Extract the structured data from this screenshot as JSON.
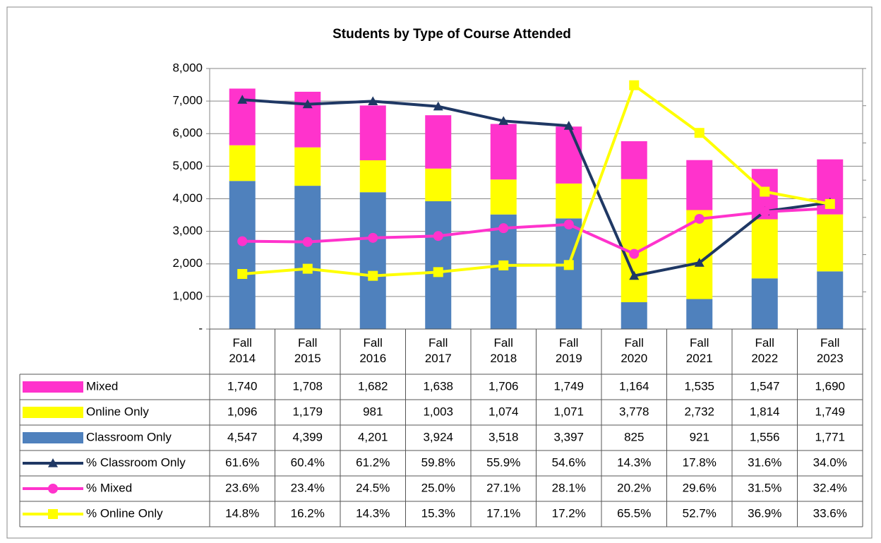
{
  "chart_data": {
    "type": "bar",
    "title": "Students by Type of Course Attended",
    "categories": [
      "Fall 2014",
      "Fall 2015",
      "Fall 2016",
      "Fall 2017",
      "Fall 2018",
      "Fall 2019",
      "Fall 2020",
      "Fall 2021",
      "Fall 2022",
      "Fall 2023"
    ],
    "series": [
      {
        "name": "Mixed",
        "type": "bar",
        "color": "#ff33cc",
        "values": [
          1740,
          1708,
          1682,
          1638,
          1706,
          1749,
          1164,
          1535,
          1547,
          1690
        ],
        "value_labels": [
          "1,740",
          "1,708",
          "1,682",
          "1,638",
          "1,706",
          "1,749",
          "1,164",
          "1,535",
          "1,547",
          "1,690"
        ]
      },
      {
        "name": "Online Only",
        "type": "bar",
        "color": "#ffff00",
        "values": [
          1096,
          1179,
          981,
          1003,
          1074,
          1071,
          3778,
          2732,
          1814,
          1749
        ],
        "value_labels": [
          "1,096",
          "1,179",
          "981",
          "1,003",
          "1,074",
          "1,071",
          "3,778",
          "2,732",
          "1,814",
          "1,749"
        ]
      },
      {
        "name": "Classroom Only",
        "type": "bar",
        "color": "#4f81bd",
        "values": [
          4547,
          4399,
          4201,
          3924,
          3518,
          3397,
          825,
          921,
          1556,
          1771
        ],
        "value_labels": [
          "4,547",
          "4,399",
          "4,201",
          "3,924",
          "3,518",
          "3,397",
          "825",
          "921",
          "1,556",
          "1,771"
        ]
      },
      {
        "name": "% Classroom Only",
        "type": "line",
        "axis": "y2",
        "marker": "triangle",
        "color": "#1f3864",
        "values": [
          61.6,
          60.4,
          61.2,
          59.8,
          55.9,
          54.6,
          14.3,
          17.8,
          31.6,
          34.0
        ],
        "value_labels": [
          "61.6%",
          "60.4%",
          "61.2%",
          "59.8%",
          "55.9%",
          "54.6%",
          "14.3%",
          "17.8%",
          "31.6%",
          "34.0%"
        ]
      },
      {
        "name": "% Mixed",
        "type": "line",
        "axis": "y2",
        "marker": "circle",
        "color": "#ff33cc",
        "values": [
          23.6,
          23.4,
          24.5,
          25.0,
          27.1,
          28.1,
          20.2,
          29.6,
          31.5,
          32.4
        ],
        "value_labels": [
          "23.6%",
          "23.4%",
          "24.5%",
          "25.0%",
          "27.1%",
          "28.1%",
          "20.2%",
          "29.6%",
          "31.5%",
          "32.4%"
        ]
      },
      {
        "name": "% Online Only",
        "type": "line",
        "axis": "y2",
        "marker": "square",
        "color": "#ffff00",
        "values": [
          14.8,
          16.2,
          14.3,
          15.3,
          17.1,
          17.2,
          65.5,
          52.7,
          36.9,
          33.6
        ],
        "value_labels": [
          "14.8%",
          "16.2%",
          "14.3%",
          "15.3%",
          "17.1%",
          "17.2%",
          "65.5%",
          "52.7%",
          "36.9%",
          "33.6%"
        ]
      }
    ],
    "ylim": [
      0,
      8000
    ],
    "yticks": [
      {
        "value": 0,
        "label": "-"
      },
      {
        "value": 1000,
        "label": "1,000"
      },
      {
        "value": 2000,
        "label": "2,000"
      },
      {
        "value": 3000,
        "label": "3,000"
      },
      {
        "value": 4000,
        "label": "4,000"
      },
      {
        "value": 5000,
        "label": "5,000"
      },
      {
        "value": 6000,
        "label": "6,000"
      },
      {
        "value": 7000,
        "label": "7,000"
      },
      {
        "value": 8000,
        "label": "8,000"
      }
    ],
    "y2lim": [
      0,
      70
    ],
    "y2ticks": [
      0,
      10,
      20,
      30,
      40,
      50,
      60,
      70
    ],
    "grid": true
  }
}
